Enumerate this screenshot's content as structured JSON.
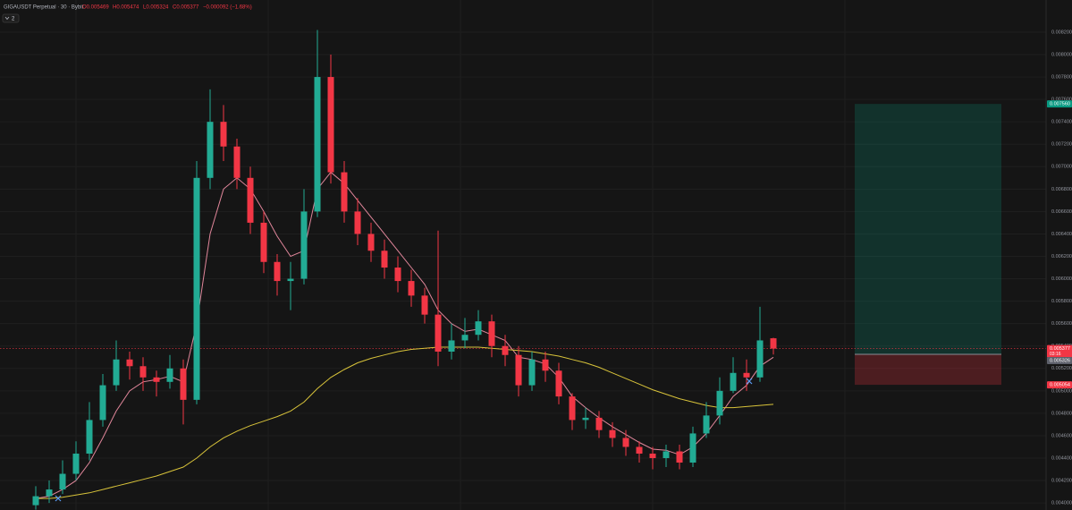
{
  "chart_data": {
    "type": "candlestick",
    "title": "GIGAUSDT Perpetual · 30 · Bybit",
    "ohlc_labels": {
      "open": "O0.005469",
      "high": "H0.005474",
      "low": "L0.005324",
      "close": "C0.005377",
      "change": "−0.000092 (−1.68%)"
    },
    "indicator_count": "2",
    "up_color": "#22ab94",
    "down_color": "#f23645",
    "open": [
      0.00398,
      0.00406,
      0.00412,
      0.00426,
      0.00444,
      0.00474,
      0.00505,
      0.00528,
      0.00522,
      0.00512,
      0.00508,
      0.0052,
      0.00492,
      0.0069,
      0.0074,
      0.00718,
      0.0069,
      0.0065,
      0.00615,
      0.00598,
      0.006,
      0.0066,
      0.0078,
      0.00695,
      0.0066,
      0.0064,
      0.00625,
      0.0061,
      0.00598,
      0.00585,
      0.00568,
      0.00535,
      0.00545,
      0.0055,
      0.00562,
      0.0054,
      0.00532,
      0.00505,
      0.00528,
      0.00518,
      0.00495,
      0.00474,
      0.00476,
      0.00465,
      0.00458,
      0.0045,
      0.00444,
      0.0044,
      0.00446,
      0.00436,
      0.00462,
      0.00478,
      0.005,
      0.00516,
      0.00512,
      0.005469
    ],
    "high": [
      0.00415,
      0.0042,
      0.00438,
      0.00455,
      0.0049,
      0.00515,
      0.00545,
      0.00535,
      0.0053,
      0.00518,
      0.00532,
      0.00528,
      0.00705,
      0.00769,
      0.00755,
      0.00725,
      0.007,
      0.0066,
      0.00622,
      0.00615,
      0.0068,
      0.00822,
      0.008,
      0.00705,
      0.00672,
      0.0065,
      0.00635,
      0.0062,
      0.00608,
      0.00592,
      0.00643,
      0.0056,
      0.00565,
      0.00572,
      0.00568,
      0.0055,
      0.0054,
      0.00535,
      0.00535,
      0.00525,
      0.00498,
      0.00485,
      0.00482,
      0.00472,
      0.00465,
      0.00455,
      0.0045,
      0.00452,
      0.00452,
      0.00468,
      0.0049,
      0.00512,
      0.0053,
      0.00528,
      0.00575,
      0.005474
    ],
    "low": [
      0.00394,
      0.004,
      0.00408,
      0.0042,
      0.00438,
      0.00468,
      0.005,
      0.0051,
      0.005,
      0.00495,
      0.00502,
      0.0047,
      0.00488,
      0.0068,
      0.00705,
      0.0068,
      0.0064,
      0.00605,
      0.00585,
      0.00572,
      0.00595,
      0.00655,
      0.00685,
      0.0065,
      0.0063,
      0.00615,
      0.006,
      0.00588,
      0.00575,
      0.0056,
      0.00522,
      0.00528,
      0.00538,
      0.00545,
      0.0053,
      0.00522,
      0.00495,
      0.005,
      0.00508,
      0.00488,
      0.00465,
      0.00466,
      0.00458,
      0.0045,
      0.00442,
      0.00436,
      0.0043,
      0.00432,
      0.0043,
      0.00432,
      0.00458,
      0.0047,
      0.00498,
      0.005,
      0.00508,
      0.005324
    ],
    "close": [
      0.00406,
      0.00412,
      0.00426,
      0.00444,
      0.00474,
      0.00505,
      0.00528,
      0.00522,
      0.00512,
      0.00508,
      0.0052,
      0.00492,
      0.0069,
      0.0074,
      0.00718,
      0.0069,
      0.0065,
      0.00615,
      0.00598,
      0.006,
      0.0066,
      0.0078,
      0.00695,
      0.0066,
      0.0064,
      0.00625,
      0.0061,
      0.00598,
      0.00585,
      0.00568,
      0.00535,
      0.00545,
      0.0055,
      0.00562,
      0.0054,
      0.00532,
      0.00505,
      0.00528,
      0.00518,
      0.00495,
      0.00474,
      0.00476,
      0.00465,
      0.00458,
      0.0045,
      0.00444,
      0.0044,
      0.00446,
      0.00436,
      0.00462,
      0.00478,
      0.005,
      0.00516,
      0.00512,
      0.00545,
      0.005377
    ],
    "overlays": [
      {
        "color": "#e0869a",
        "values": [
          0.00404,
          0.00406,
          0.00412,
          0.0042,
          0.00436,
          0.00458,
          0.00482,
          0.005,
          0.00508,
          0.0051,
          0.00513,
          0.00508,
          0.0056,
          0.0064,
          0.0068,
          0.0069,
          0.0068,
          0.0066,
          0.00638,
          0.0062,
          0.00625,
          0.0068,
          0.00695,
          0.00685,
          0.0067,
          0.00655,
          0.0064,
          0.00625,
          0.0061,
          0.00595,
          0.00572,
          0.0056,
          0.00553,
          0.00555,
          0.0055,
          0.00545,
          0.0053,
          0.00528,
          0.00524,
          0.00512,
          0.00495,
          0.00485,
          0.00476,
          0.00468,
          0.00461,
          0.00454,
          0.00448,
          0.00447,
          0.00443,
          0.0045,
          0.00462,
          0.00478,
          0.00495,
          0.00505,
          0.00522,
          0.0053
        ]
      },
      {
        "color": "#d8c33a",
        "values": [
          0.00404,
          0.00404,
          0.00405,
          0.00407,
          0.00409,
          0.00412,
          0.00415,
          0.00418,
          0.00421,
          0.00424,
          0.00428,
          0.00432,
          0.0044,
          0.0045,
          0.00458,
          0.00464,
          0.00469,
          0.00473,
          0.00477,
          0.00482,
          0.0049,
          0.00502,
          0.00512,
          0.00519,
          0.00525,
          0.00529,
          0.00532,
          0.00535,
          0.00537,
          0.00538,
          0.00539,
          0.00539,
          0.00539,
          0.00539,
          0.00538,
          0.00537,
          0.00536,
          0.00535,
          0.00533,
          0.00531,
          0.00528,
          0.00525,
          0.00521,
          0.00516,
          0.00511,
          0.00506,
          0.00501,
          0.00497,
          0.00493,
          0.0049,
          0.00487,
          0.00485,
          0.00485,
          0.00486,
          0.00487,
          0.00488
        ]
      }
    ],
    "ylim": [
      0.003937,
      0.008487
    ],
    "yticks": [
      {
        "value": 0.0082,
        "label": "0.008200"
      },
      {
        "value": 0.008,
        "label": "0.008000"
      },
      {
        "value": 0.0078,
        "label": "0.007800"
      },
      {
        "value": 0.0076,
        "label": "0.007600"
      },
      {
        "value": 0.0074,
        "label": "0.007400"
      },
      {
        "value": 0.0072,
        "label": "0.007200"
      },
      {
        "value": 0.007,
        "label": "0.007000"
      },
      {
        "value": 0.0068,
        "label": "0.006800"
      },
      {
        "value": 0.0066,
        "label": "0.006600"
      },
      {
        "value": 0.0064,
        "label": "0.006400"
      },
      {
        "value": 0.0062,
        "label": "0.006200"
      },
      {
        "value": 0.006,
        "label": "0.006000"
      },
      {
        "value": 0.0058,
        "label": "0.005800"
      },
      {
        "value": 0.0056,
        "label": "0.005600"
      },
      {
        "value": 0.0054,
        "label": "0.005400"
      },
      {
        "value": 0.0052,
        "label": "0.005200"
      },
      {
        "value": 0.005,
        "label": "0.005000"
      },
      {
        "value": 0.0048,
        "label": "0.004800"
      },
      {
        "value": 0.0046,
        "label": "0.004600"
      },
      {
        "value": 0.0044,
        "label": "0.004400"
      },
      {
        "value": 0.0042,
        "label": "0.004200"
      },
      {
        "value": 0.004,
        "label": "0.004000"
      }
    ],
    "grid": true,
    "price_tags": [
      {
        "value": 0.00756,
        "label": "0.007560",
        "color": "#089981"
      },
      {
        "value": 0.005377,
        "label": "0.005377",
        "color": "#f23645"
      },
      {
        "value": 0.005326,
        "label": "0.005326",
        "color": "#5d606b"
      },
      {
        "value": 0.005054,
        "label": "0.005054",
        "color": "#f23645"
      }
    ],
    "countdown": "03:16"
  }
}
